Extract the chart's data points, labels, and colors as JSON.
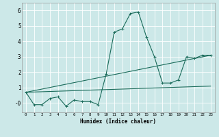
{
  "xlabel": "Humidex (Indice chaleur)",
  "ylabel": "",
  "bg_color": "#cce8e8",
  "grid_color": "#ffffff",
  "line_color": "#1a6b5a",
  "xlim": [
    -0.5,
    23.5
  ],
  "ylim": [
    -0.6,
    6.5
  ],
  "xticks": [
    0,
    1,
    2,
    3,
    4,
    5,
    6,
    7,
    8,
    9,
    10,
    11,
    12,
    13,
    14,
    15,
    16,
    17,
    18,
    19,
    20,
    21,
    22,
    23
  ],
  "yticks": [
    0,
    1,
    2,
    3,
    4,
    5,
    6
  ],
  "ytick_labels": [
    "-0",
    "1",
    "2",
    "3",
    "4",
    "5",
    "6"
  ],
  "series1_x": [
    0,
    1,
    2,
    3,
    4,
    5,
    6,
    7,
    8,
    9,
    10,
    11,
    12,
    13,
    14,
    15,
    16,
    17,
    18,
    19,
    20,
    21,
    22,
    23
  ],
  "series1_y": [
    0.7,
    -0.1,
    -0.1,
    0.3,
    0.4,
    -0.2,
    0.2,
    0.1,
    0.1,
    -0.1,
    1.9,
    4.6,
    4.8,
    5.8,
    5.9,
    4.3,
    3.0,
    1.3,
    1.3,
    1.5,
    3.0,
    2.9,
    3.1,
    3.1
  ],
  "series2_x": [
    0,
    23
  ],
  "series2_y": [
    0.7,
    1.1
  ],
  "series3_x": [
    0,
    23
  ],
  "series3_y": [
    0.7,
    3.1
  ],
  "marker_size": 3,
  "line_width": 0.8
}
